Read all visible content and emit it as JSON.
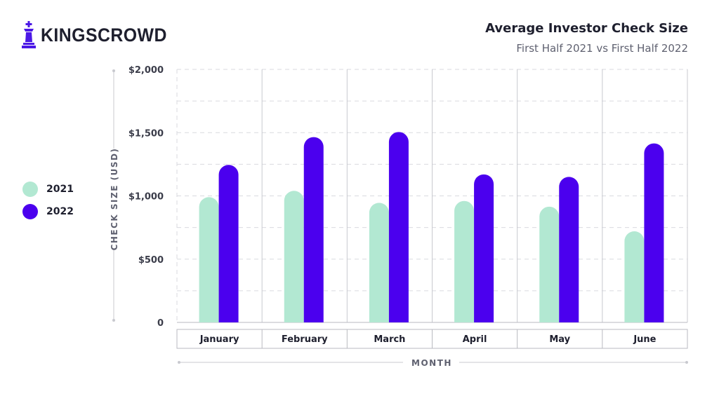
{
  "brand": {
    "name": "KINGSCROWD",
    "logo_icon": "chess-king-icon",
    "color": "#4b18e6"
  },
  "title": "Average Investor Check Size",
  "subtitle": "First Half 2021 vs First Half 2022",
  "legend": [
    {
      "label": "2021",
      "color": "#b2e8d2"
    },
    {
      "label": "2022",
      "color": "#4b00ee"
    }
  ],
  "chart_data": {
    "type": "bar",
    "title": "Average Investor Check Size",
    "subtitle": "First Half 2021 vs First Half 2022",
    "xlabel": "MONTH",
    "ylabel": "CHECK SIZE (USD)",
    "categories": [
      "January",
      "February",
      "March",
      "April",
      "May",
      "June"
    ],
    "series": [
      {
        "name": "2021",
        "color": "#b2e8d2",
        "values": [
          990,
          1040,
          945,
          960,
          915,
          720
        ]
      },
      {
        "name": "2022",
        "color": "#4b00ee",
        "values": [
          1245,
          1465,
          1505,
          1170,
          1150,
          1415
        ]
      }
    ],
    "ylim": [
      0,
      2000
    ],
    "yticks": [
      0,
      500,
      1000,
      1500,
      2000
    ],
    "ytick_labels": [
      "0",
      "$500",
      "$1,000",
      "$1,500",
      "$2,000"
    ],
    "grid": true,
    "legend_position": "left"
  }
}
